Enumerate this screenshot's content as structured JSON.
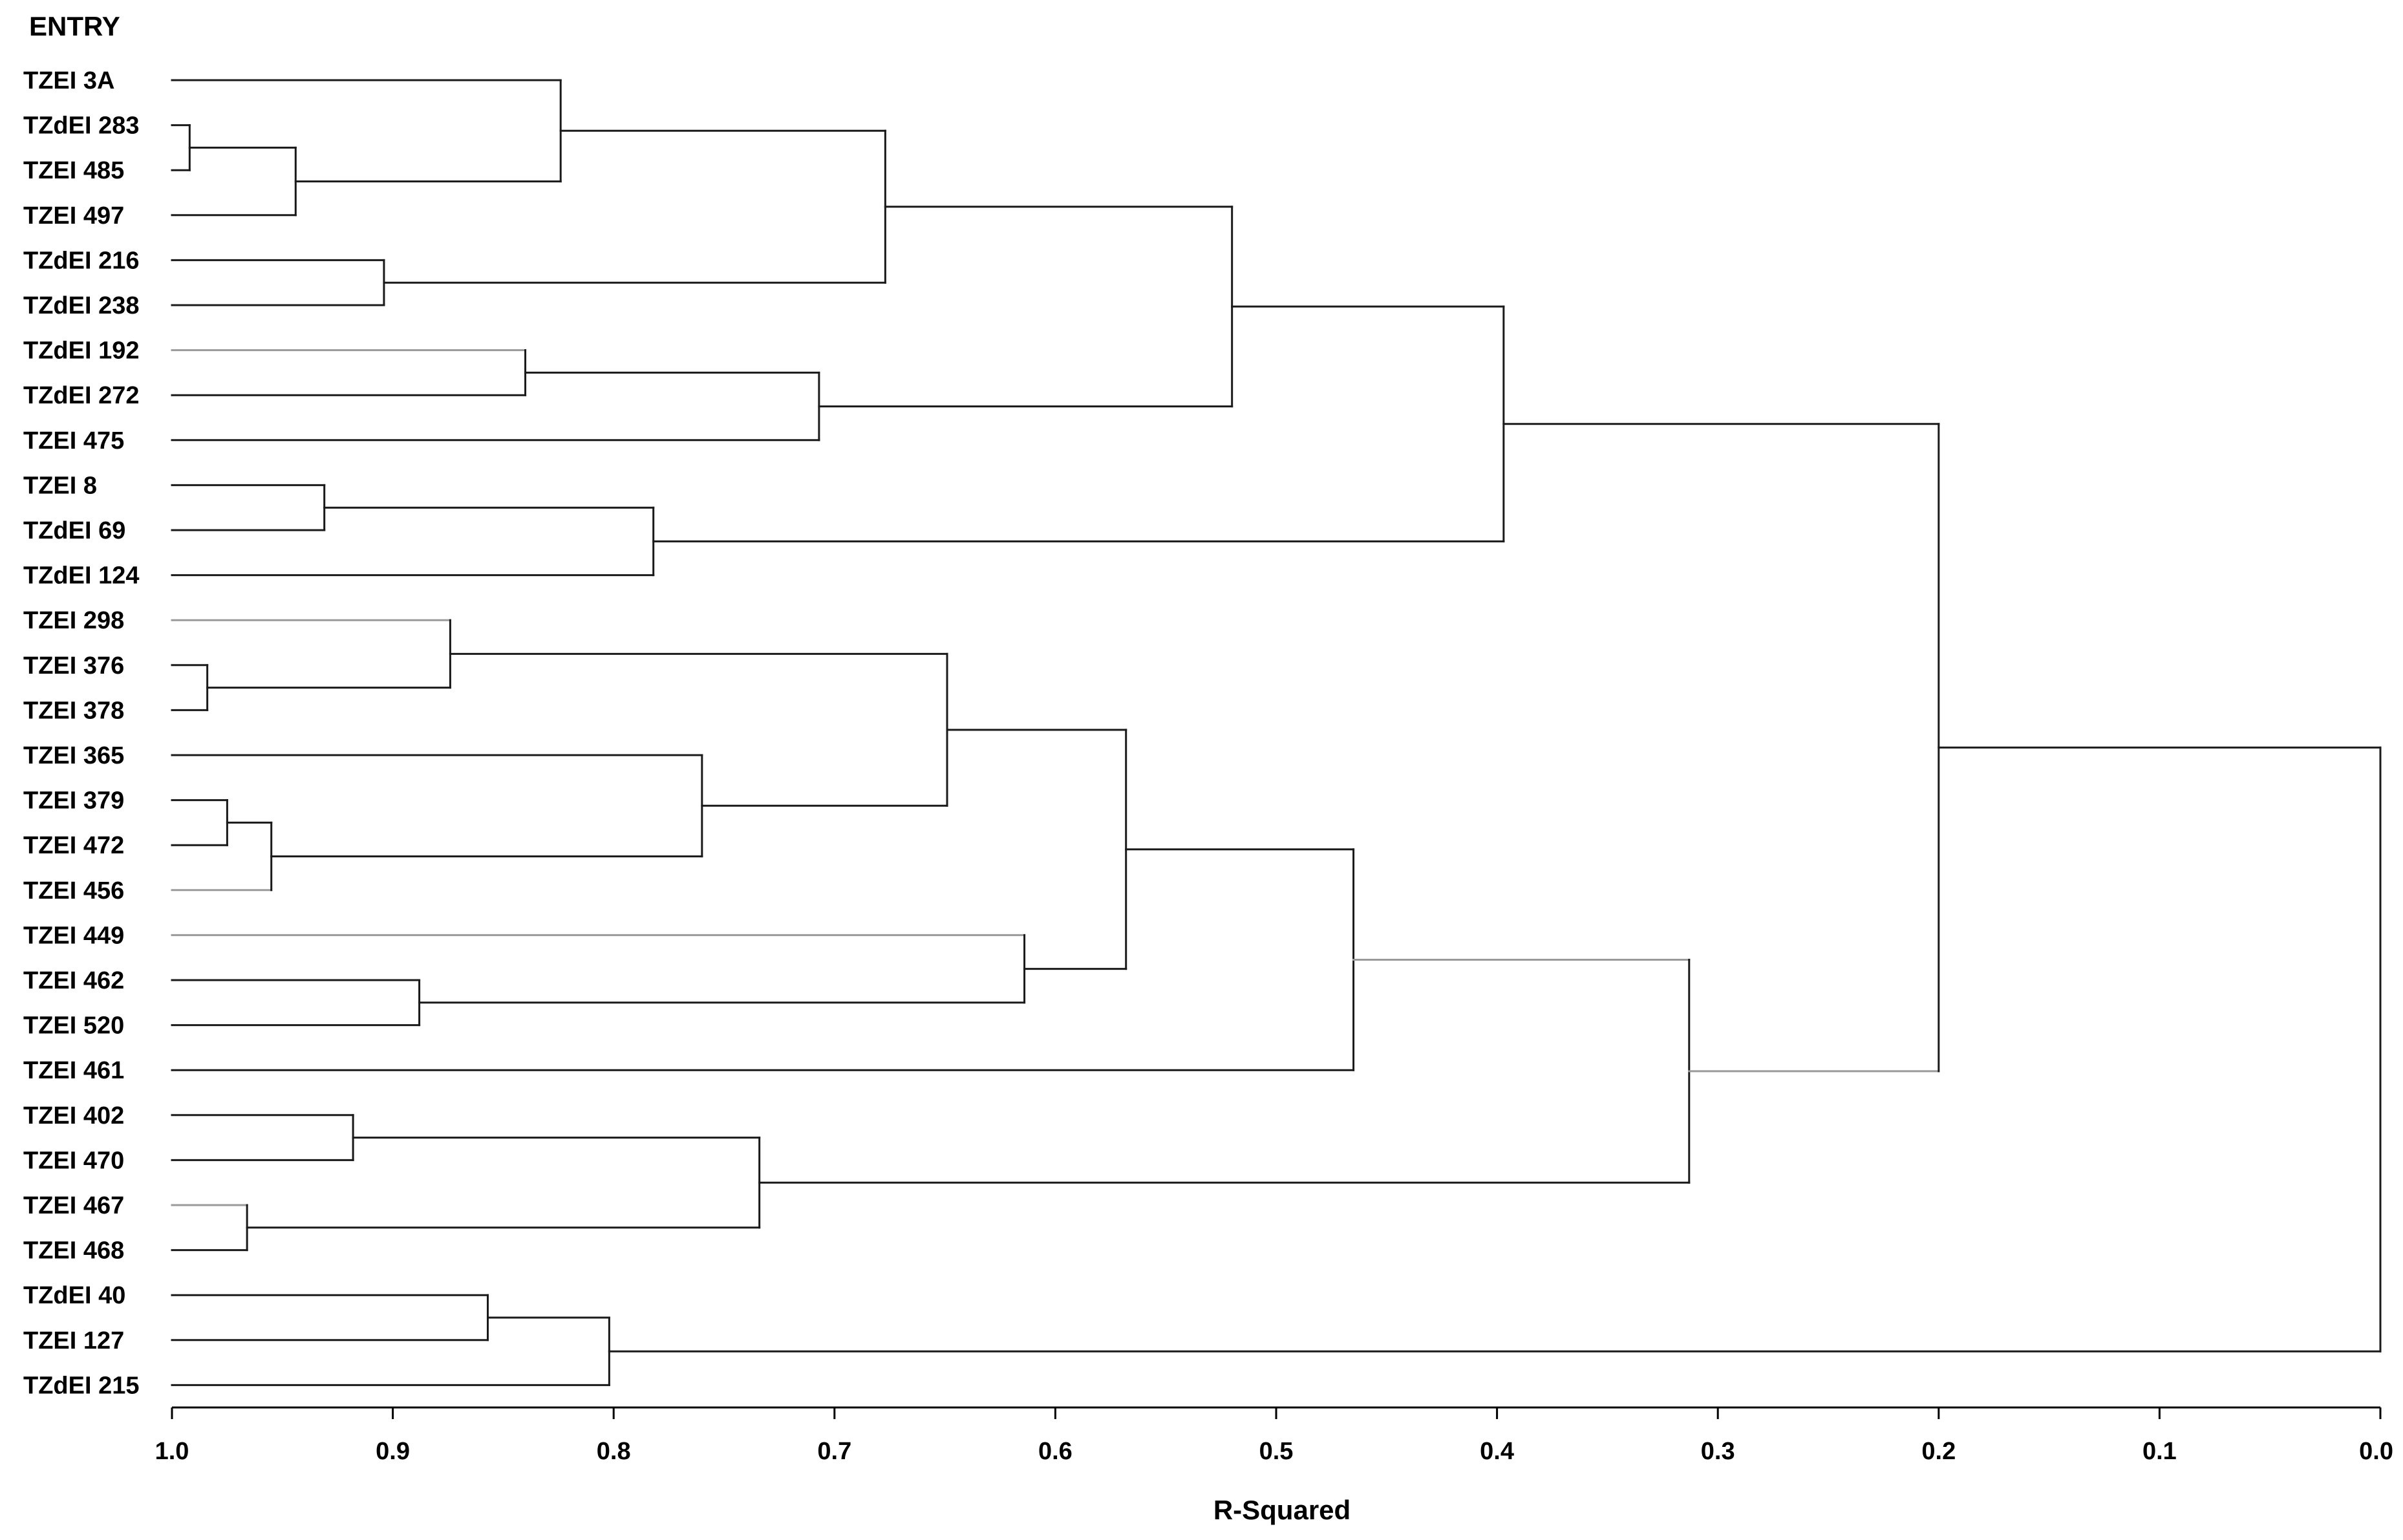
{
  "chart_data": {
    "type": "dendrogram",
    "header": "ENTRY",
    "xlabel": "R-Squared",
    "xlim": [
      1.0,
      0.0
    ],
    "ticks": [
      "1.0",
      "0.9",
      "0.8",
      "0.7",
      "0.6",
      "0.5",
      "0.4",
      "0.3",
      "0.2",
      "0.1",
      "0.0"
    ],
    "leaves": [
      "TZEI 3A",
      "TZdEI 283",
      "TZEI 485",
      "TZEI 497",
      "TZdEI 216",
      "TZdEI 238",
      "TZdEI 192",
      "TZdEI 272",
      "TZEI 475",
      "TZEI 8",
      "TZdEI 69",
      "TZdEI 124",
      "TZEI 298",
      "TZEI 376",
      "TZEI 378",
      "TZEI 365",
      "TZEI 379",
      "TZEI 472",
      "TZEI 456",
      "TZEI 449",
      "TZEI 462",
      "TZEI 520",
      "TZEI 461",
      "TZEI 402",
      "TZEI 470",
      "TZEI 467",
      "TZEI 468",
      "TZdEI 40",
      "TZEI 127",
      "TZdEI 215"
    ],
    "tree": {
      "h": 0.0,
      "c": [
        {
          "h": 0.2,
          "c": [
            {
              "h": 0.397,
              "c": [
                {
                  "h": 0.52,
                  "c": [
                    {
                      "h": 0.677,
                      "c": [
                        {
                          "h": 0.824,
                          "c": [
                            {
                              "l": 0
                            },
                            {
                              "h": 0.944,
                              "c": [
                                {
                                  "h": 0.992,
                                  "c": [
                                    {
                                      "l": 1
                                    },
                                    {
                                      "l": 2
                                    }
                                  ]
                                },
                                {
                                  "l": 3
                                }
                              ]
                            }
                          ]
                        },
                        {
                          "h": 0.904,
                          "c": [
                            {
                              "l": 4
                            },
                            {
                              "l": 5
                            }
                          ]
                        }
                      ]
                    },
                    {
                      "h": 0.707,
                      "c": [
                        {
                          "h": 0.84,
                          "c": [
                            {
                              "l": 6
                            },
                            {
                              "l": 7
                            }
                          ]
                        },
                        {
                          "l": 8
                        }
                      ]
                    }
                  ]
                },
                {
                  "h": 0.782,
                  "c": [
                    {
                      "h": 0.931,
                      "c": [
                        {
                          "l": 9
                        },
                        {
                          "l": 10
                        }
                      ]
                    },
                    {
                      "l": 11
                    }
                  ]
                }
              ]
            },
            {
              "h": 0.313,
              "c": [
                {
                  "h": 0.465,
                  "c": [
                    {
                      "h": 0.568,
                      "c": [
                        {
                          "h": 0.649,
                          "c": [
                            {
                              "h": 0.874,
                              "c": [
                                {
                                  "l": 12
                                },
                                {
                                  "h": 0.984,
                                  "c": [
                                    {
                                      "l": 13
                                    },
                                    {
                                      "l": 14
                                    }
                                  ]
                                }
                              ]
                            },
                            {
                              "h": 0.76,
                              "c": [
                                {
                                  "l": 15
                                },
                                {
                                  "h": 0.955,
                                  "c": [
                                    {
                                      "h": 0.975,
                                      "c": [
                                        {
                                          "l": 16
                                        },
                                        {
                                          "l": 17
                                        }
                                      ]
                                    },
                                    {
                                      "l": 18
                                    }
                                  ]
                                }
                              ]
                            }
                          ]
                        },
                        {
                          "h": 0.614,
                          "c": [
                            {
                              "l": 19
                            },
                            {
                              "h": 0.888,
                              "c": [
                                {
                                  "l": 20
                                },
                                {
                                  "l": 21
                                }
                              ]
                            }
                          ]
                        }
                      ]
                    },
                    {
                      "l": 22
                    }
                  ]
                },
                {
                  "h": 0.734,
                  "c": [
                    {
                      "h": 0.918,
                      "c": [
                        {
                          "l": 23
                        },
                        {
                          "l": 24
                        }
                      ]
                    },
                    {
                      "h": 0.966,
                      "c": [
                        {
                          "l": 25
                        },
                        {
                          "l": 26
                        }
                      ]
                    }
                  ]
                }
              ]
            }
          ]
        },
        {
          "h": 0.802,
          "c": [
            {
              "h": 0.857,
              "c": [
                {
                  "l": 27
                },
                {
                  "l": 28
                }
              ]
            },
            {
              "l": 29
            }
          ]
        }
      ]
    },
    "colors": {
      "branch": "#1a1a1a",
      "branch_light": "#9a9a9a",
      "text": "#000000",
      "background": "#ffffff"
    }
  }
}
